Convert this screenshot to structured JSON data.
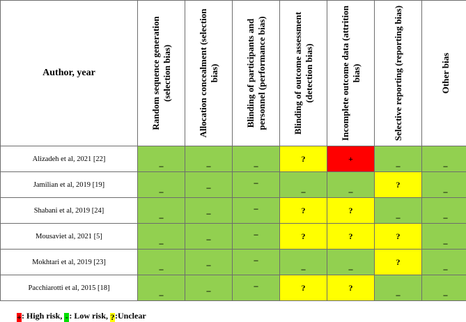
{
  "header": {
    "author": "Author, year",
    "domains": [
      "Random sequence generation (selection bias)",
      "Allocation concealment (selection bias)",
      "Blinding of participants and personnel (performance bias)",
      "Blinding of outcome assessment (detection bias)",
      "Incomplete outcome data (attrition bias)",
      "Selective reporting (reporting bias)",
      "Other bias"
    ]
  },
  "rows": [
    {
      "study": "Alizadeh et al, 2021 [22]",
      "ratings": [
        "low",
        "low",
        "low",
        "unclear",
        "high",
        "low",
        "low"
      ]
    },
    {
      "study": "Jamilian et al, 2019 [19]",
      "ratings": [
        "low",
        "low",
        "low",
        "low",
        "low",
        "unclear",
        "low"
      ]
    },
    {
      "study": "Shabani et al, 2019 [24]",
      "ratings": [
        "low",
        "low",
        "low",
        "unclear",
        "unclear",
        "low",
        "low"
      ]
    },
    {
      "study": "Mousaviet al, 2021 [5]",
      "ratings": [
        "low",
        "low",
        "low",
        "unclear",
        "unclear",
        "unclear",
        "low"
      ]
    },
    {
      "study": "Mokhtari et al, 2019 [23]",
      "ratings": [
        "low",
        "low",
        "low",
        "low",
        "low",
        "unclear",
        "low"
      ]
    },
    {
      "study": "Pacchiarotti et al, 2015 [18]",
      "ratings": [
        "low",
        "low",
        "low",
        "unclear",
        "unclear",
        "low",
        "low"
      ]
    }
  ],
  "symbols": {
    "low": "_",
    "unclear": "?",
    "high": "+"
  },
  "colors": {
    "low": "#92d050",
    "unclear": "#ffff00",
    "high": "#ff0000",
    "legend_low": "#00e000"
  },
  "legend": {
    "high_symbol": "+",
    "high_label": ": High risk, ",
    "low_symbol": "-",
    "low_label": ": Low risk, ",
    "unclear_symbol": "?",
    "unclear_label": ":Unclear"
  }
}
